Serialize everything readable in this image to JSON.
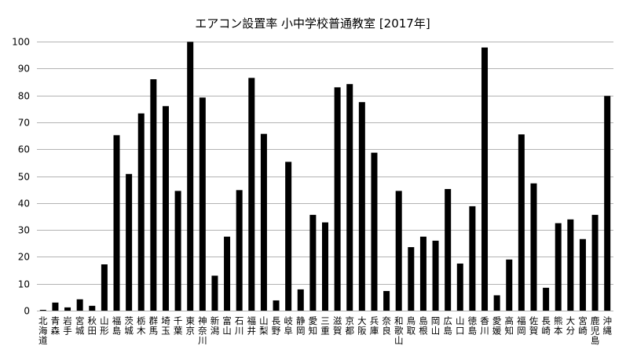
{
  "chart_data": {
    "type": "bar",
    "title": "エアコン設置率 小中学校普通教室 [2017年]",
    "xlabel": "",
    "ylabel": "",
    "ylim": [
      0,
      100
    ],
    "yticks": [
      0,
      10,
      20,
      30,
      40,
      50,
      60,
      70,
      80,
      90,
      100
    ],
    "grid": true,
    "legend": "none",
    "bar_color": "#000000",
    "grid_color": "#b3b3b3",
    "categories": [
      "北海道",
      "青森",
      "岩手",
      "宮城",
      "秋田",
      "山形",
      "福島",
      "茨城",
      "栃木",
      "群馬",
      "埼玉",
      "千葉",
      "東京",
      "神奈川",
      "新潟",
      "富山",
      "石川",
      "福井",
      "山梨",
      "長野",
      "岐阜",
      "静岡",
      "愛知",
      "三重",
      "滋賀",
      "京都",
      "大阪",
      "兵庫",
      "奈良",
      "和歌山",
      "鳥取",
      "島根",
      "岡山",
      "広島",
      "山口",
      "徳島",
      "香川",
      "愛媛",
      "高知",
      "福岡",
      "佐賀",
      "長崎",
      "熊本",
      "大分",
      "宮崎",
      "鹿児島",
      "沖縄"
    ],
    "values": [
      0.3,
      3.0,
      1.2,
      4.2,
      1.8,
      17.2,
      65.2,
      50.8,
      73.3,
      86.0,
      76.0,
      44.5,
      99.9,
      79.2,
      13.0,
      27.5,
      44.8,
      86.5,
      65.7,
      3.8,
      55.3,
      7.9,
      35.6,
      32.8,
      83.0,
      84.2,
      77.5,
      58.7,
      7.3,
      44.5,
      23.6,
      27.5,
      26.0,
      45.2,
      17.5,
      38.8,
      97.8,
      5.7,
      19.0,
      65.5,
      47.3,
      8.5,
      32.5,
      33.9,
      26.6,
      35.6,
      79.8
    ]
  }
}
